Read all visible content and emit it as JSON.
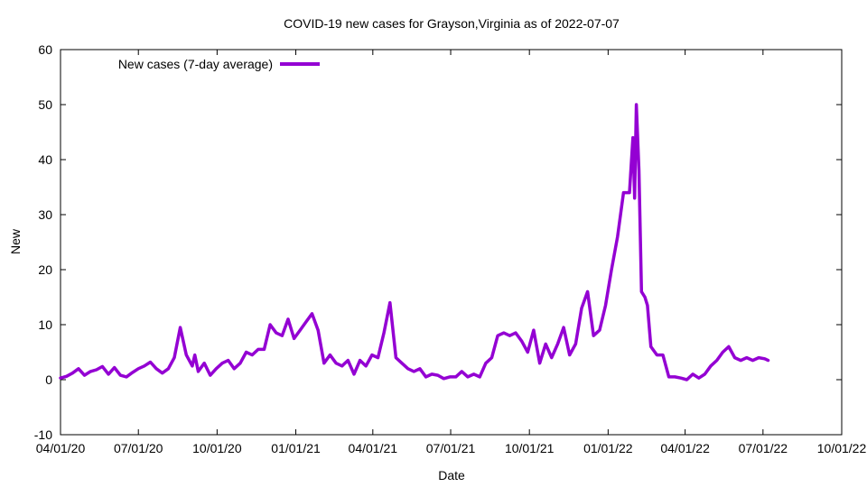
{
  "chart_data": {
    "type": "line",
    "title": "COVID-19 new cases for Grayson,Virginia as of 2022-07-07",
    "xlabel": "Date",
    "ylabel": "New",
    "ylim": [
      -10,
      60
    ],
    "yticks": [
      "-10",
      "0",
      "10",
      "20",
      "30",
      "40",
      "50",
      "60"
    ],
    "xlim": [
      "2020-04-01",
      "2022-10-01"
    ],
    "xticks": [
      "04/01/20",
      "07/01/20",
      "10/01/20",
      "01/01/21",
      "04/01/21",
      "07/01/21",
      "10/01/21",
      "01/01/22",
      "04/01/22",
      "07/01/22",
      "10/01/22"
    ],
    "xtick_dates": [
      "2020-04-01",
      "2020-07-01",
      "2020-10-01",
      "2021-01-01",
      "2021-04-01",
      "2021-07-01",
      "2021-10-01",
      "2022-01-01",
      "2022-04-01",
      "2022-07-01",
      "2022-10-01"
    ],
    "grid": false,
    "legend_position": "top-left",
    "color": "#9400d3",
    "series": [
      {
        "name": "New cases (7-day average)",
        "x": [
          "2020-04-01",
          "2020-04-08",
          "2020-04-15",
          "2020-04-22",
          "2020-04-29",
          "2020-05-06",
          "2020-05-13",
          "2020-05-20",
          "2020-05-27",
          "2020-06-03",
          "2020-06-10",
          "2020-06-17",
          "2020-06-24",
          "2020-07-01",
          "2020-07-08",
          "2020-07-15",
          "2020-07-22",
          "2020-07-29",
          "2020-08-05",
          "2020-08-12",
          "2020-08-19",
          "2020-08-26",
          "2020-09-02",
          "2020-09-05",
          "2020-09-09",
          "2020-09-16",
          "2020-09-23",
          "2020-09-30",
          "2020-10-07",
          "2020-10-14",
          "2020-10-21",
          "2020-10-28",
          "2020-11-04",
          "2020-11-11",
          "2020-11-18",
          "2020-11-25",
          "2020-12-02",
          "2020-12-09",
          "2020-12-16",
          "2020-12-23",
          "2020-12-30",
          "2021-01-06",
          "2021-01-13",
          "2021-01-20",
          "2021-01-27",
          "2021-02-03",
          "2021-02-10",
          "2021-02-17",
          "2021-02-24",
          "2021-03-03",
          "2021-03-10",
          "2021-03-17",
          "2021-03-24",
          "2021-03-31",
          "2021-04-07",
          "2021-04-14",
          "2021-04-21",
          "2021-04-28",
          "2021-05-05",
          "2021-05-12",
          "2021-05-19",
          "2021-05-26",
          "2021-06-02",
          "2021-06-09",
          "2021-06-16",
          "2021-06-23",
          "2021-06-30",
          "2021-07-07",
          "2021-07-14",
          "2021-07-21",
          "2021-07-28",
          "2021-08-04",
          "2021-08-11",
          "2021-08-18",
          "2021-08-25",
          "2021-09-01",
          "2021-09-08",
          "2021-09-15",
          "2021-09-22",
          "2021-09-29",
          "2021-10-06",
          "2021-10-13",
          "2021-10-20",
          "2021-10-27",
          "2021-11-03",
          "2021-11-10",
          "2021-11-17",
          "2021-11-24",
          "2021-12-01",
          "2021-12-08",
          "2021-12-15",
          "2021-12-22",
          "2021-12-29",
          "2022-01-05",
          "2022-01-12",
          "2022-01-19",
          "2022-01-26",
          "2022-01-30",
          "2022-02-01",
          "2022-02-03",
          "2022-02-06",
          "2022-02-09",
          "2022-02-13",
          "2022-02-16",
          "2022-02-20",
          "2022-02-27",
          "2022-03-06",
          "2022-03-13",
          "2022-03-20",
          "2022-03-27",
          "2022-04-03",
          "2022-04-10",
          "2022-04-17",
          "2022-04-24",
          "2022-05-01",
          "2022-05-08",
          "2022-05-15",
          "2022-05-22",
          "2022-05-29",
          "2022-06-05",
          "2022-06-12",
          "2022-06-19",
          "2022-06-26",
          "2022-07-03",
          "2022-07-07"
        ],
        "values": [
          0.3,
          0.6,
          1.2,
          2.0,
          0.8,
          1.5,
          1.8,
          2.4,
          1.0,
          2.2,
          0.8,
          0.5,
          1.3,
          2.0,
          2.5,
          3.2,
          2.0,
          1.2,
          2.0,
          4.0,
          9.5,
          4.5,
          2.5,
          4.5,
          1.5,
          3.0,
          0.8,
          2.0,
          3.0,
          3.5,
          2.0,
          3.0,
          5.0,
          4.5,
          5.5,
          5.5,
          10.0,
          8.5,
          8.0,
          11.0,
          7.5,
          9.0,
          10.5,
          12.0,
          9.0,
          3.0,
          4.5,
          3.0,
          2.5,
          3.5,
          1.0,
          3.5,
          2.5,
          4.5,
          4.0,
          8.5,
          14.0,
          4.0,
          3.0,
          2.0,
          1.5,
          2.0,
          0.5,
          1.0,
          0.8,
          0.2,
          0.5,
          0.5,
          1.5,
          0.5,
          1.0,
          0.5,
          3.0,
          4.0,
          8.0,
          8.5,
          8.0,
          8.5,
          7.0,
          5.0,
          9.0,
          3.0,
          6.5,
          4.0,
          6.5,
          9.5,
          4.5,
          6.5,
          13.0,
          16.0,
          8.0,
          9.0,
          13.5,
          20.0,
          26.0,
          34.0,
          34.0,
          44.0,
          33.0,
          50.0,
          38.0,
          16.0,
          15.0,
          13.5,
          6.0,
          4.5,
          4.5,
          0.5,
          0.5,
          0.3,
          0.0,
          1.0,
          0.3,
          1.0,
          2.5,
          3.5,
          5.0,
          6.0,
          4.0,
          3.5,
          4.0,
          3.5,
          4.0,
          3.8,
          3.5
        ]
      }
    ]
  }
}
